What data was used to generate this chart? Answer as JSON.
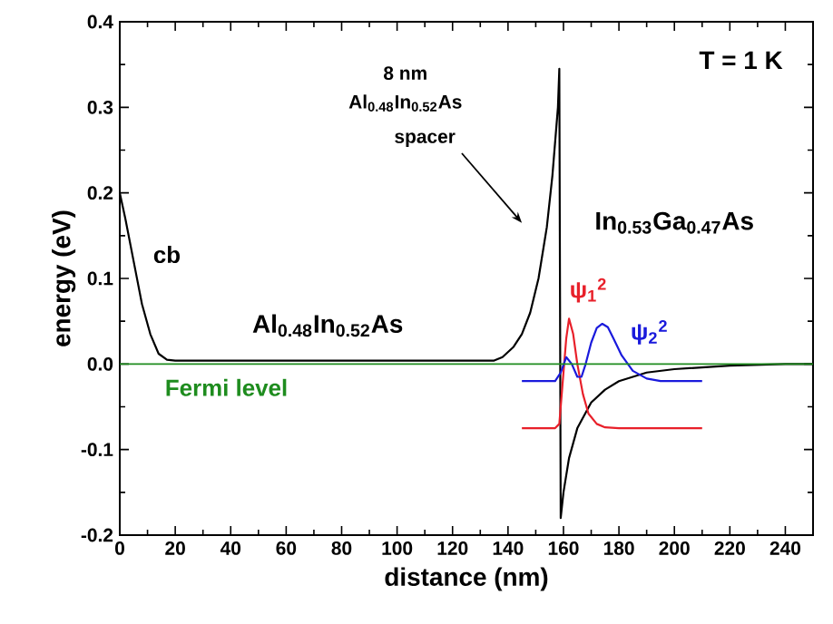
{
  "chart_data": {
    "type": "line",
    "xlabel": "distance (nm)",
    "ylabel": "energy (eV)",
    "xlim": [
      0,
      250
    ],
    "ylim": [
      -0.2,
      0.4
    ],
    "xticks": [
      0,
      20,
      40,
      60,
      80,
      100,
      120,
      140,
      160,
      180,
      200,
      220,
      240
    ],
    "yticks": [
      -0.2,
      -0.1,
      {
        "value": 0,
        "label": "0.0"
      },
      0.1,
      0.2,
      0.3,
      0.4
    ],
    "series": [
      {
        "name": "cb",
        "color": "#000000",
        "x": [
          0,
          2,
          5,
          8,
          11,
          14,
          17,
          20,
          135,
          138,
          142,
          145,
          148,
          151,
          154,
          156,
          158,
          158.5,
          159,
          160,
          162,
          165,
          170,
          175,
          180,
          190,
          200,
          220,
          240,
          250
        ],
        "values": [
          0.2,
          0.17,
          0.12,
          0.07,
          0.035,
          0.012,
          0.005,
          0.004,
          0.004,
          0.008,
          0.02,
          0.035,
          0.06,
          0.1,
          0.16,
          0.22,
          0.3,
          0.345,
          -0.18,
          -0.15,
          -0.11,
          -0.075,
          -0.045,
          -0.03,
          -0.02,
          -0.01,
          -0.006,
          -0.002,
          0,
          0
        ]
      },
      {
        "name": "ψ$_{1}$$^{2}$",
        "color": "#e8202a",
        "x": [
          145,
          157,
          158.5,
          159.5,
          161,
          162,
          163.5,
          165,
          167,
          169,
          172,
          175,
          180,
          210
        ],
        "values": [
          -0.075,
          -0.075,
          -0.07,
          -0.03,
          0.03,
          0.053,
          0.035,
          0.0,
          -0.035,
          -0.058,
          -0.07,
          -0.074,
          -0.075,
          -0.075
        ]
      },
      {
        "name": "ψ$_{2}$$^{2}$",
        "color": "#1a1adc",
        "x": [
          145,
          157,
          159,
          161,
          163,
          165,
          166.5,
          168,
          170,
          172,
          174,
          176,
          178,
          181,
          185,
          190,
          195,
          210
        ],
        "values": [
          -0.02,
          -0.02,
          -0.01,
          0.008,
          0.0,
          -0.015,
          -0.015,
          0.0,
          0.025,
          0.042,
          0.047,
          0.043,
          0.03,
          0.01,
          -0.008,
          -0.017,
          -0.02,
          -0.02
        ]
      }
    ],
    "ref_lines": [
      {
        "axis": "y",
        "value": 0,
        "label": "Fermi level",
        "color": "#1e8c1e"
      }
    ],
    "annotations": [
      "Al$_{0.48}$In$_{0.52}$As",
      "In$_{0.53}$Ga$_{0.47}$As",
      "T = 1 K",
      "8 nm",
      "Al$_{0.48}$In$_{0.52}$As",
      "spacer"
    ]
  }
}
